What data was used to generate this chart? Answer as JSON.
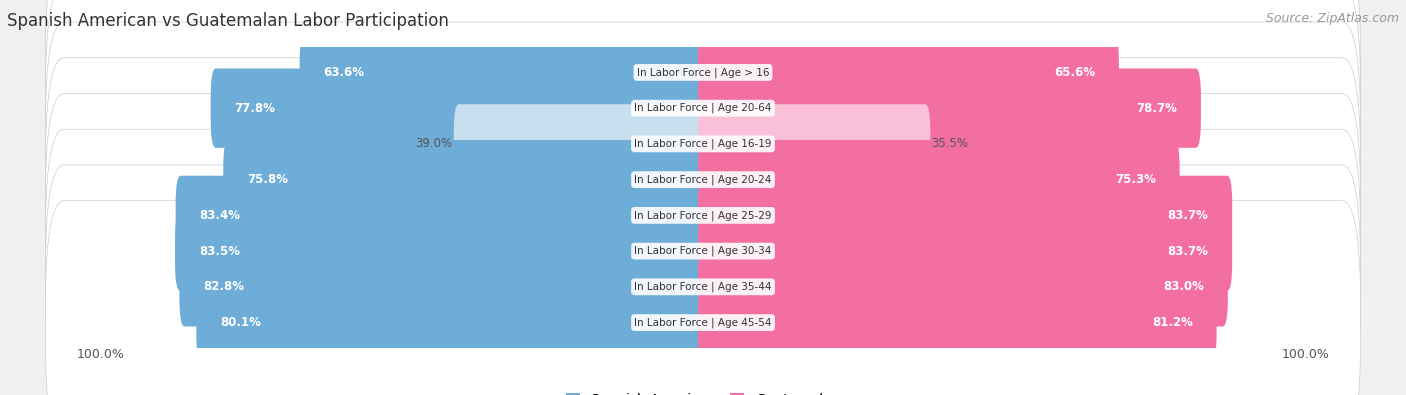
{
  "title": "Spanish American vs Guatemalan Labor Participation",
  "source": "Source: ZipAtlas.com",
  "categories": [
    "In Labor Force | Age > 16",
    "In Labor Force | Age 20-64",
    "In Labor Force | Age 16-19",
    "In Labor Force | Age 20-24",
    "In Labor Force | Age 25-29",
    "In Labor Force | Age 30-34",
    "In Labor Force | Age 35-44",
    "In Labor Force | Age 45-54"
  ],
  "spanish_values": [
    63.6,
    77.8,
    39.0,
    75.8,
    83.4,
    83.5,
    82.8,
    80.1
  ],
  "guatemalan_values": [
    65.6,
    78.7,
    35.5,
    75.3,
    83.7,
    83.7,
    83.0,
    81.2
  ],
  "spanish_color": "#6dadd8",
  "guatemalan_color": "#f46fa1",
  "spanish_light_color": "#c8dff0",
  "guatemalan_light_color": "#f9c0d8",
  "text_white": "#ffffff",
  "text_dark": "#555555",
  "bg_color": "#f0f0f0",
  "row_bg_color": "#e8e8e8",
  "title_fontsize": 12,
  "source_fontsize": 9,
  "bar_fontsize": 8.5,
  "legend_fontsize": 10,
  "axis_label_fontsize": 9,
  "max_val": 100.0,
  "legend_labels": [
    "Spanish American",
    "Guatemalan"
  ],
  "short_threshold": 50
}
